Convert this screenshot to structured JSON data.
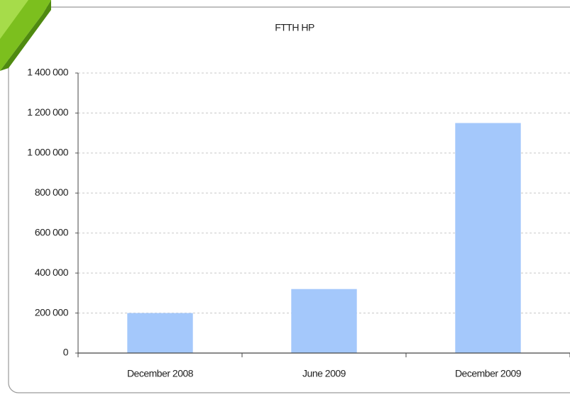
{
  "chart_data": {
    "type": "bar",
    "title": "FTTH HP",
    "categories": [
      "December 2008",
      "June 2009",
      "December 2009"
    ],
    "values": [
      200000,
      320000,
      1150000
    ],
    "color": "#a4c8fb",
    "ylim": [
      0,
      1400000
    ],
    "yticks": [
      0,
      {
        "value": 200000,
        "label": "200 000"
      },
      {
        "value": 400000,
        "label": "400 000"
      },
      {
        "value": 600000,
        "label": "600 000"
      },
      {
        "value": 800000,
        "label": "800 000"
      },
      {
        "value": 1000000,
        "label": "1 000 000"
      },
      {
        "value": 1200000,
        "label": "1 200 000"
      },
      {
        "value": 1400000,
        "label": "1 400 000"
      }
    ],
    "grid": true
  }
}
